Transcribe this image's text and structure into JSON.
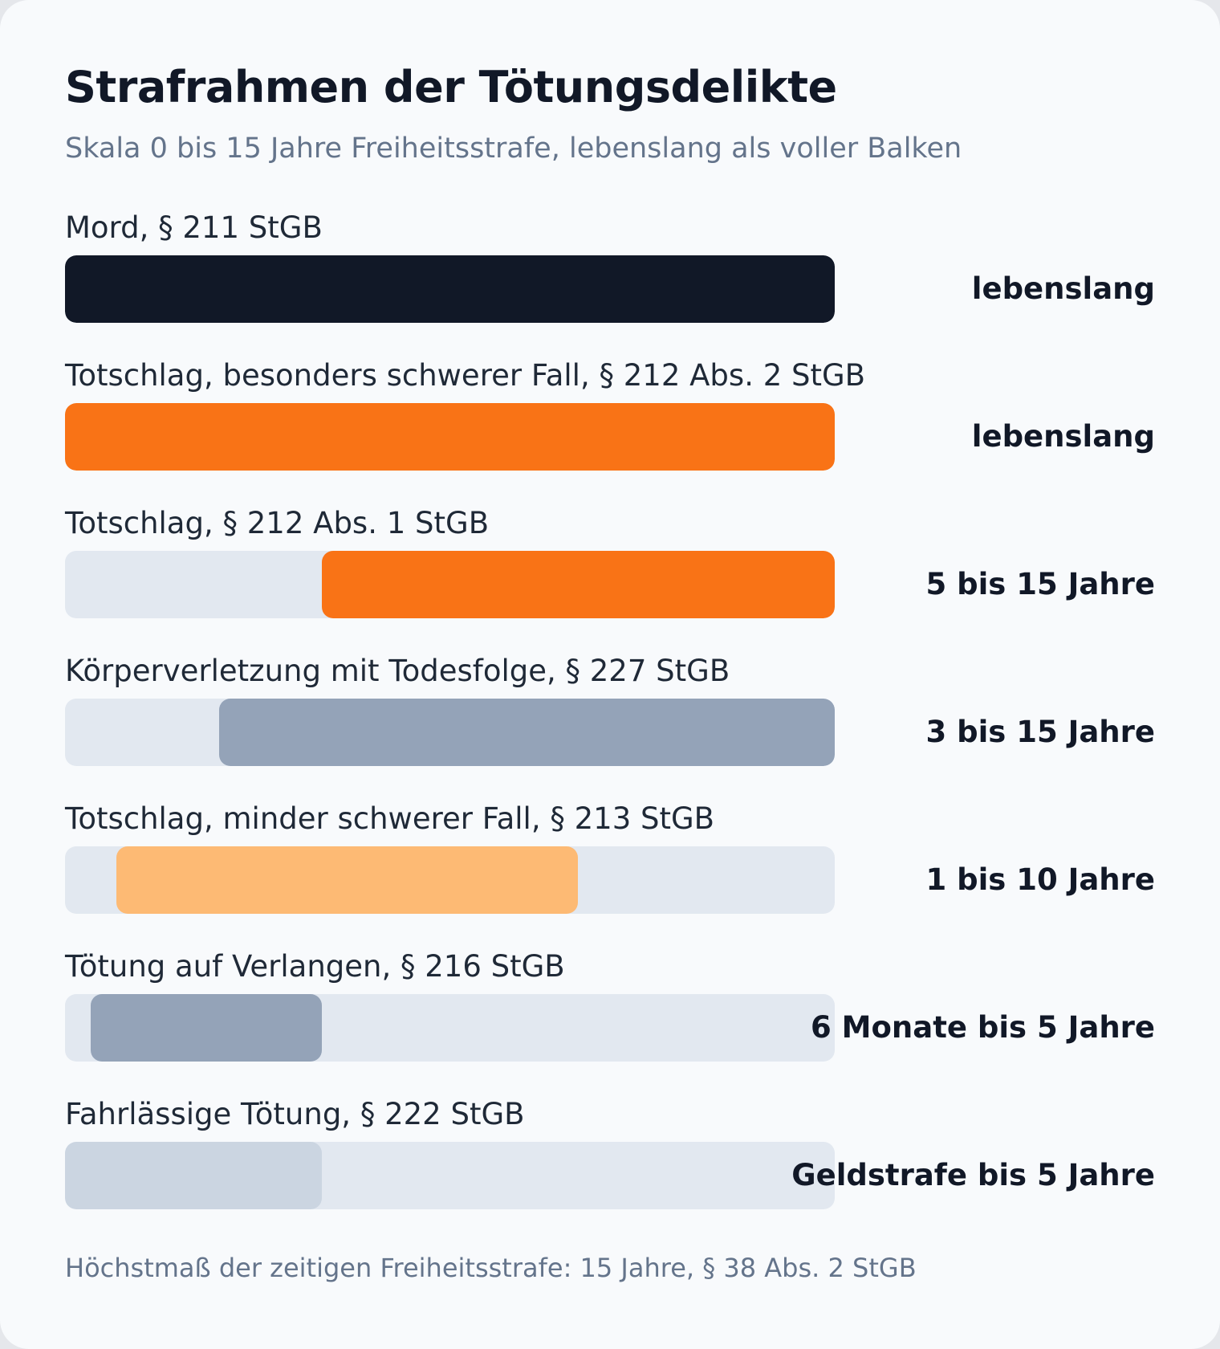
{
  "title": "Strafrahmen der Tötungsdelikte",
  "subtitle": "Skala 0 bis 15 Jahre Freiheitsstrafe, lebenslang als voller Balken",
  "footnote": "Höchstmaß der zeitigen Freiheitsstrafe: 15 Jahre, § 38 Abs. 2 StGB",
  "colors": {
    "track": "#e2e8f0",
    "navy": "#111827",
    "orange": "#f97316",
    "light_orange": "#fdba74",
    "slate": "#94a3b8",
    "light_slate": "#cbd5e1"
  },
  "chart_data": {
    "type": "bar",
    "orientation": "horizontal",
    "scale_unit": "Jahre",
    "xlim": [
      0,
      15
    ],
    "grid": false,
    "categories": [
      "Mord, § 211 StGB",
      "Totschlag, besonders schwerer Fall, § 212 Abs. 2 StGB",
      "Totschlag, § 212 Abs. 1 StGB",
      "Körperverletzung mit Todesfolge, § 227 StGB",
      "Totschlag, minder schwerer Fall, § 213 StGB",
      "Tötung auf Verlangen, § 216 StGB",
      "Fahrlässige Tötung, § 222 StGB"
    ],
    "ranges": [
      {
        "from": 0,
        "to": 15,
        "label": "lebenslang",
        "color": "#111827"
      },
      {
        "from": 0,
        "to": 15,
        "label": "lebenslang",
        "color": "#f97316"
      },
      {
        "from": 5,
        "to": 15,
        "label": "5 bis 15 Jahre",
        "color": "#f97316"
      },
      {
        "from": 3,
        "to": 15,
        "label": "3 bis 15 Jahre",
        "color": "#94a3b8"
      },
      {
        "from": 1,
        "to": 10,
        "label": "1 bis 10 Jahre",
        "color": "#fdba74"
      },
      {
        "from": 0.5,
        "to": 5,
        "label": "6 Monate bis 5 Jahre",
        "color": "#94a3b8"
      },
      {
        "from": 0,
        "to": 5,
        "label": "Geldstrafe bis 5 Jahre",
        "color": "#cbd5e1"
      }
    ]
  }
}
